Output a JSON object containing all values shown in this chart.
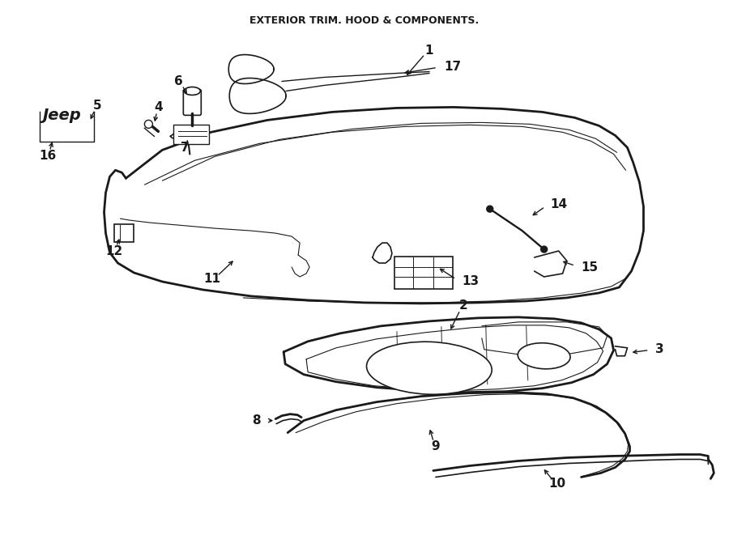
{
  "title": "EXTERIOR TRIM. HOOD & COMPONENTS.",
  "background": "#ffffff",
  "line_color": "#1a1a1a",
  "font_size_labels": 11,
  "font_size_title": 9,
  "figsize": [
    9.0,
    6.61
  ],
  "dpi": 100
}
